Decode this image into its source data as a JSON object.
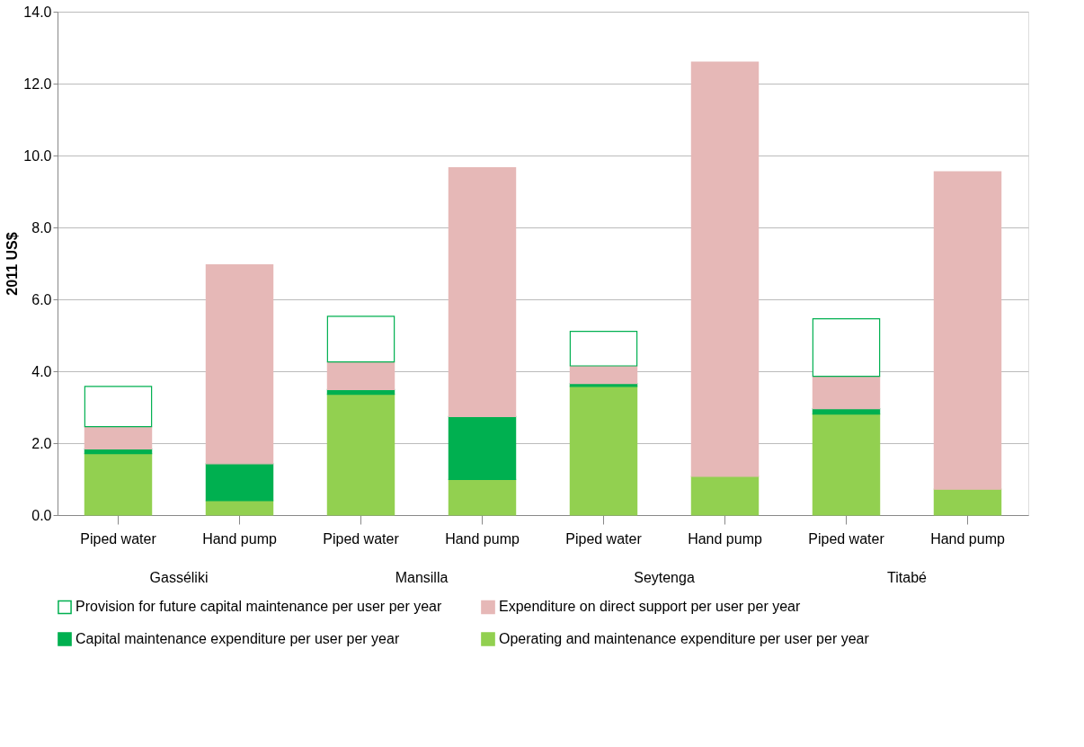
{
  "chart_data": {
    "type": "bar",
    "stacked": true,
    "ylabel": "2011 US$",
    "categories": [
      "Piped water",
      "Hand pump",
      "Piped water",
      "Hand pump",
      "Piped water",
      "Hand pump",
      "Piped water",
      "Hand pump"
    ],
    "annotations": [
      "Gasséliki",
      "Mansilla",
      "Seytenga",
      "Titabé"
    ],
    "series": [
      {
        "name": "Operating and maintenance expenditure per user per year",
        "color": "#92d050",
        "values": [
          1.71,
          0.4,
          3.36,
          0.99,
          3.58,
          1.08,
          2.81,
          0.72
        ]
      },
      {
        "name": "Capital maintenance expenditure per user per year",
        "color": "#00b050",
        "values": [
          0.13,
          1.03,
          0.13,
          1.75,
          0.08,
          null,
          0.15,
          null
        ]
      },
      {
        "name": "Expenditure on direct support per user per year",
        "color": "#e6b8b7",
        "values": [
          0.62,
          5.53,
          0.77,
          6.92,
          0.49,
          11.52,
          0.9,
          8.83
        ]
      },
      {
        "name": "Provision for future capital maintenance per user per year",
        "color": "#ffffff",
        "values": [
          1.12,
          null,
          1.27,
          null,
          0.96,
          null,
          1.6,
          null
        ]
      }
    ],
    "ylim": [
      0,
      14
    ],
    "yticks": [
      {
        "value": 0,
        "label": "0.0"
      },
      {
        "value": 2,
        "label": "2.0"
      },
      {
        "value": 4,
        "label": "4.0"
      },
      {
        "value": 6,
        "label": "6.0"
      },
      {
        "value": 8,
        "label": "8.0"
      },
      {
        "value": 10,
        "label": "10.0"
      },
      {
        "value": 12,
        "label": "12.0"
      },
      {
        "value": 14,
        "label": "14.0"
      }
    ],
    "grid": "y",
    "legend": "bottom"
  }
}
